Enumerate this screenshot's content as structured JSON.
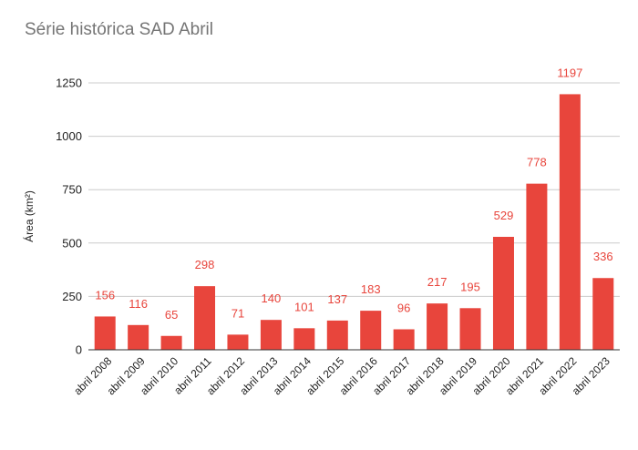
{
  "chart_data": {
    "type": "bar",
    "title": "Série histórica SAD Abril",
    "xlabel": "",
    "ylabel": "Área (km²)",
    "categories": [
      "abril 2008",
      "abril 2009",
      "abril 2010",
      "abril 2011",
      "abril 2012",
      "abril 2013",
      "abril 2014",
      "abril 2015",
      "abril 2016",
      "abril 2017",
      "abril 2018",
      "abril 2019",
      "abril 2020",
      "abril 2021",
      "abril 2022",
      "abril 2023"
    ],
    "values": [
      156,
      116,
      65,
      298,
      71,
      140,
      101,
      137,
      183,
      96,
      217,
      195,
      529,
      778,
      1197,
      336
    ],
    "ylim": [
      0,
      1250
    ],
    "yticks": [
      0,
      250,
      500,
      750,
      1000,
      1250
    ],
    "grid": true,
    "legend": "none",
    "bar_color": "#e8453c",
    "label_color": "#e8453c"
  }
}
